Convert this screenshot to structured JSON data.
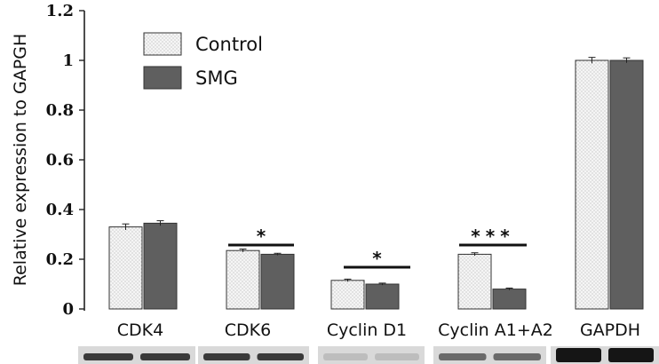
{
  "chart_data": {
    "type": "bar",
    "ylabel": "Relative expression to GAPGH",
    "ylim": [
      0,
      1.2
    ],
    "yticks": [
      "0",
      "0.2",
      "0.4",
      "0.6",
      "0.8",
      "1",
      "1.2"
    ],
    "categories": [
      "CDK4",
      "CDK6",
      "Cyclin D1",
      "Cyclin A1+A2",
      "GAPDH"
    ],
    "series": [
      {
        "name": "Control",
        "values": [
          0.33,
          0.235,
          0.115,
          0.22,
          1.0
        ],
        "errors": [
          0.012,
          0.006,
          0.005,
          0.006,
          0.012
        ],
        "color": "#f2f2f2",
        "pattern": "dotted"
      },
      {
        "name": "SMG",
        "values": [
          0.345,
          0.22,
          0.1,
          0.08,
          1.0
        ],
        "errors": [
          0.01,
          0.004,
          0.004,
          0.004,
          0.01
        ],
        "color": "#5f5f5f",
        "pattern": "solid"
      }
    ],
    "significance": [
      "",
      "*",
      "*",
      "***",
      ""
    ],
    "legend": {
      "placement": "top-left"
    },
    "grid": false,
    "blot_strip_colors": [
      "#3a3a3a",
      "#3a3a3a",
      "#bdbdbd",
      "#6a6a6a",
      "#151515"
    ]
  }
}
